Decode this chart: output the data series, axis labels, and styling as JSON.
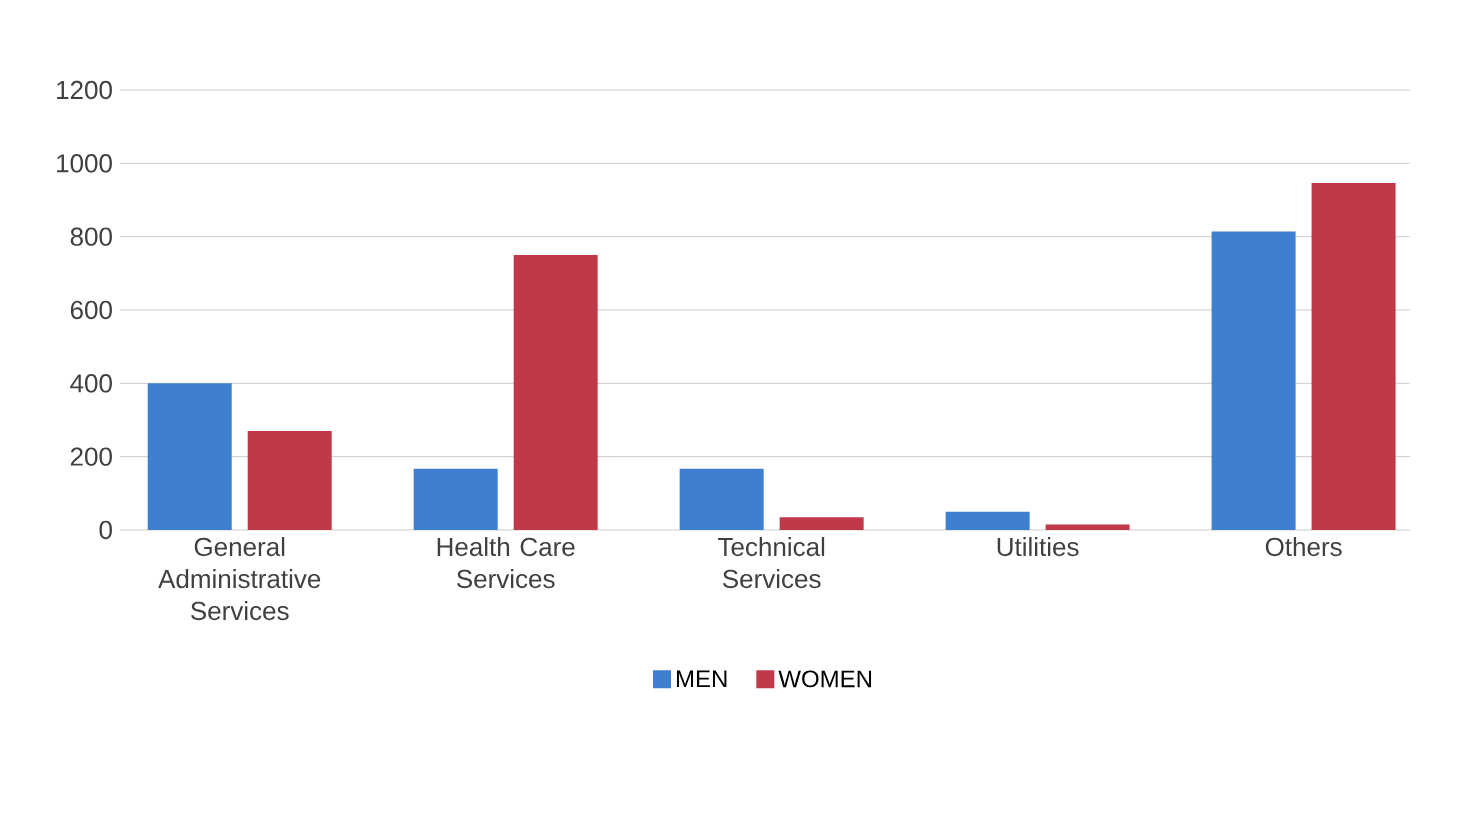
{
  "chart_data": {
    "type": "bar",
    "categories": [
      "General Administrative Services",
      "Health Care Services",
      "Technical Services",
      "Utilities",
      "Others"
    ],
    "series": [
      {
        "name": "MEN",
        "color": "#3f7fcf",
        "values": [
          400,
          167,
          167,
          50,
          814
        ]
      },
      {
        "name": "WOMEN",
        "color": "#c0394b",
        "values": [
          270,
          750,
          35,
          15,
          946
        ]
      }
    ],
    "ylim": [
      0,
      1200
    ],
    "yticks": [
      0,
      200,
      400,
      600,
      800,
      1000,
      1200
    ],
    "grid": "y",
    "legend": "bottom"
  }
}
